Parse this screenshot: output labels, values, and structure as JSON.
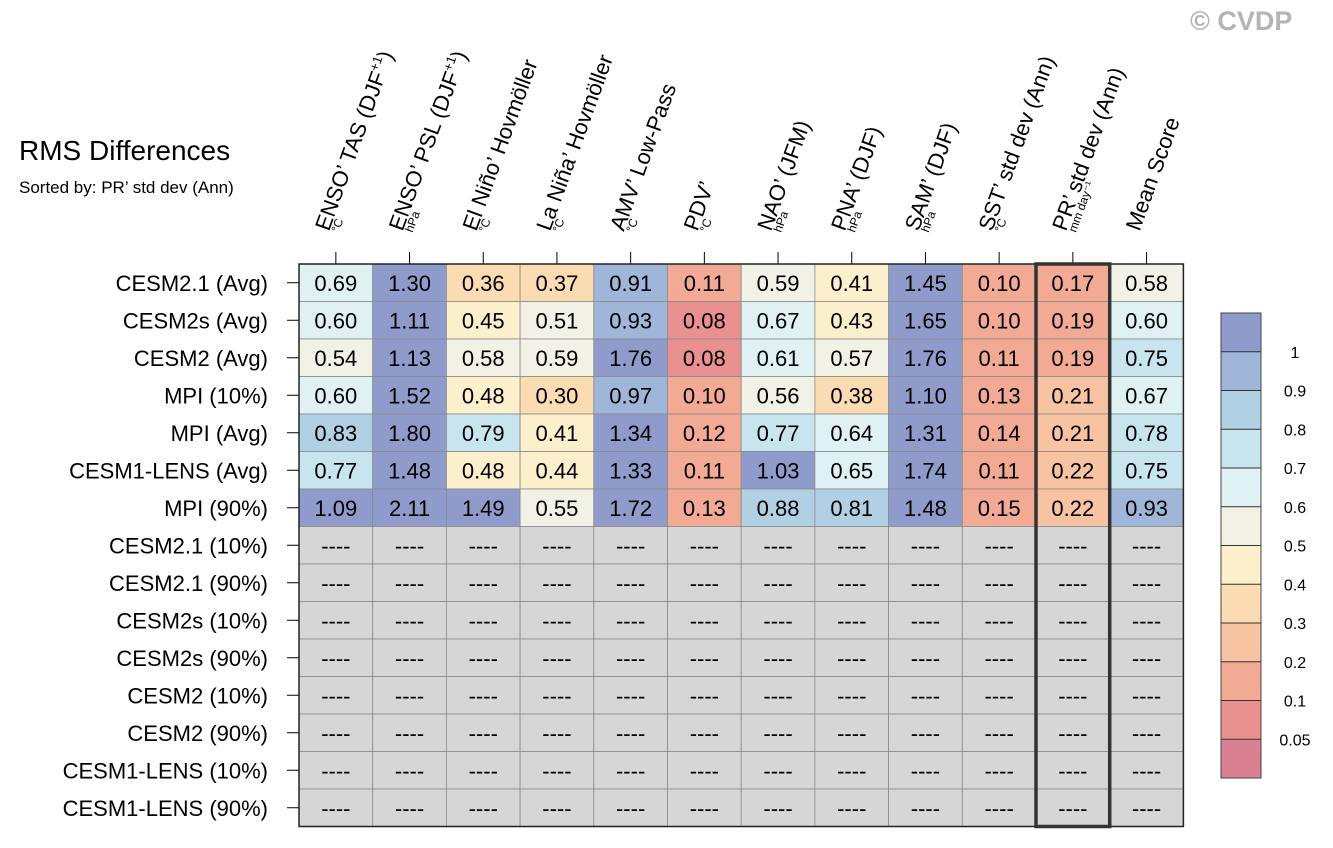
{
  "watermark": "© CVDP",
  "chart_data": {
    "type": "heatmap",
    "title": "RMS Differences",
    "subtitle": "Sorted by: PR’ std dev (Ann)",
    "highlighted_column": "PR’ std dev (Ann)",
    "columns": [
      {
        "label": "ENSO’ TAS (DJF",
        "sup": "+1",
        "close": ")",
        "unit": "°C"
      },
      {
        "label": "ENSO’ PSL (DJF",
        "sup": "+1",
        "close": ")",
        "unit": "hPa"
      },
      {
        "label": "El Niño’ Hovmöller",
        "sup": "",
        "close": "",
        "unit": "°C"
      },
      {
        "label": "La Niña’ Hovmöller",
        "sup": "",
        "close": "",
        "unit": "°C"
      },
      {
        "label": "AMV’ Low-Pass",
        "sup": "",
        "close": "",
        "unit": "°C"
      },
      {
        "label": "PDV’",
        "sup": "",
        "close": "",
        "unit": "°C"
      },
      {
        "label": "NAO’ (JFM)",
        "sup": "",
        "close": "",
        "unit": "hPa"
      },
      {
        "label": "PNA’ (DJF)",
        "sup": "",
        "close": "",
        "unit": "hPa"
      },
      {
        "label": "SAM’ (DJF)",
        "sup": "",
        "close": "",
        "unit": "hPa"
      },
      {
        "label": "SST’ std dev (Ann)",
        "sup": "",
        "close": "",
        "unit": "°C"
      },
      {
        "label": "PR’ std dev (Ann)",
        "sup": "",
        "close": "",
        "unit": "mm day⁻¹"
      },
      {
        "label": "Mean Score",
        "sup": "",
        "close": "",
        "unit": ""
      }
    ],
    "rows": [
      "CESM2.1 (Avg)",
      "CESM2s (Avg)",
      "CESM2 (Avg)",
      "MPI (10%)",
      "MPI (Avg)",
      "CESM1-LENS (Avg)",
      "MPI (90%)",
      "CESM2.1 (10%)",
      "CESM2.1 (90%)",
      "CESM2s (10%)",
      "CESM2s (90%)",
      "CESM2 (10%)",
      "CESM2 (90%)",
      "CESM1-LENS (10%)",
      "CESM1-LENS (90%)"
    ],
    "values": [
      [
        0.69,
        1.3,
        0.36,
        0.37,
        0.91,
        0.11,
        0.59,
        0.41,
        1.45,
        0.1,
        0.17,
        0.58
      ],
      [
        0.6,
        1.11,
        0.45,
        0.51,
        0.93,
        0.08,
        0.67,
        0.43,
        1.65,
        0.1,
        0.19,
        0.6
      ],
      [
        0.54,
        1.13,
        0.58,
        0.59,
        1.76,
        0.08,
        0.61,
        0.57,
        1.76,
        0.11,
        0.19,
        0.75
      ],
      [
        0.6,
        1.52,
        0.48,
        0.3,
        0.97,
        0.1,
        0.56,
        0.38,
        1.1,
        0.13,
        0.21,
        0.67
      ],
      [
        0.83,
        1.8,
        0.79,
        0.41,
        1.34,
        0.12,
        0.77,
        0.64,
        1.31,
        0.14,
        0.21,
        0.78
      ],
      [
        0.77,
        1.48,
        0.48,
        0.44,
        1.33,
        0.11,
        1.03,
        0.65,
        1.74,
        0.11,
        0.22,
        0.75
      ],
      [
        1.09,
        2.11,
        1.49,
        0.55,
        1.72,
        0.13,
        0.88,
        0.81,
        1.48,
        0.15,
        0.22,
        0.93
      ],
      [
        null,
        null,
        null,
        null,
        null,
        null,
        null,
        null,
        null,
        null,
        null,
        null
      ],
      [
        null,
        null,
        null,
        null,
        null,
        null,
        null,
        null,
        null,
        null,
        null,
        null
      ],
      [
        null,
        null,
        null,
        null,
        null,
        null,
        null,
        null,
        null,
        null,
        null,
        null
      ],
      [
        null,
        null,
        null,
        null,
        null,
        null,
        null,
        null,
        null,
        null,
        null,
        null
      ],
      [
        null,
        null,
        null,
        null,
        null,
        null,
        null,
        null,
        null,
        null,
        null,
        null
      ],
      [
        null,
        null,
        null,
        null,
        null,
        null,
        null,
        null,
        null,
        null,
        null,
        null
      ],
      [
        null,
        null,
        null,
        null,
        null,
        null,
        null,
        null,
        null,
        null,
        null,
        null
      ],
      [
        null,
        null,
        null,
        null,
        null,
        null,
        null,
        null,
        null,
        null,
        null,
        null
      ]
    ],
    "missing_text": "----",
    "missing_color": "#d6d6d6",
    "colorbar": {
      "tick_labels": [
        "1",
        "0.9",
        "0.8",
        "0.7",
        "0.6",
        "0.5",
        "0.4",
        "0.3",
        "0.2",
        "0.1",
        "0.05"
      ],
      "bounds": [
        1.0,
        0.9,
        0.8,
        0.7,
        0.6,
        0.5,
        0.4,
        0.3,
        0.2,
        0.1,
        0.05
      ],
      "colors": [
        "#8f9ccb",
        "#9fb6d8",
        "#b2d0e4",
        "#c8e4ee",
        "#e0f1f4",
        "#f1f1e5",
        "#fbf0cb",
        "#fbdcb2",
        "#f8c3a2",
        "#f3aa95",
        "#e99090",
        "#d98092"
      ]
    }
  }
}
